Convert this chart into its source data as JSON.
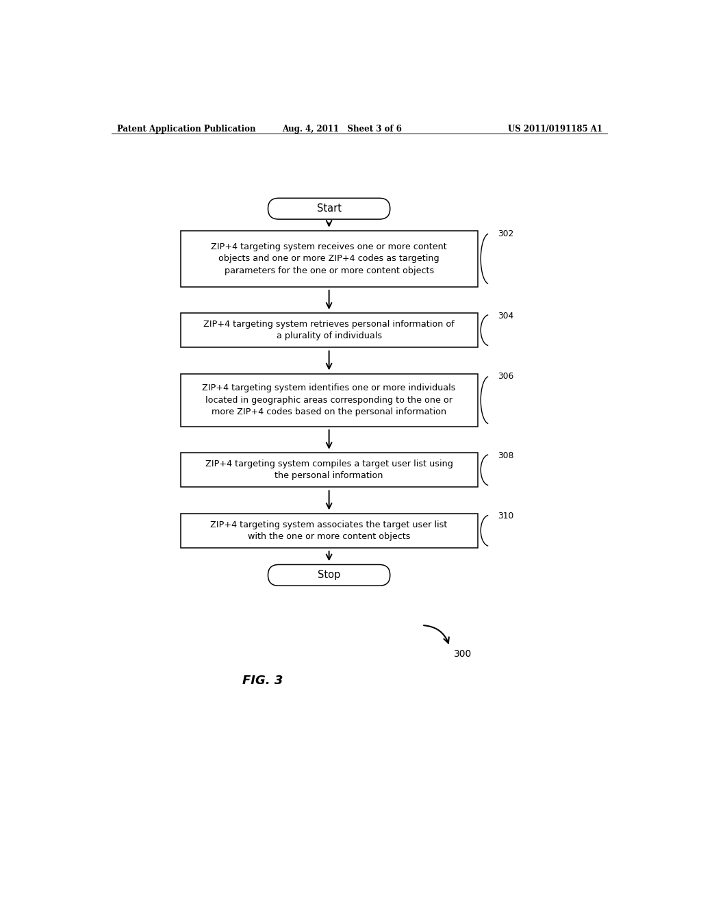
{
  "header_left": "Patent Application Publication",
  "header_center": "Aug. 4, 2011   Sheet 3 of 6",
  "header_right": "US 2011/0191185 A1",
  "figure_label": "FIG. 3",
  "diagram_label": "300",
  "start_label": "Start",
  "stop_label": "Stop",
  "boxes": [
    {
      "id": "302",
      "lines": [
        "ZIP+4 targeting system receives one or more content",
        "objects and one or more ZIP+4 codes as targeting",
        "parameters for the one or more content objects"
      ]
    },
    {
      "id": "304",
      "lines": [
        "ZIP+4 targeting system retrieves personal information of",
        "a plurality of individuals"
      ]
    },
    {
      "id": "306",
      "lines": [
        "ZIP+4 targeting system identifies one or more individuals",
        "located in geographic areas corresponding to the one or",
        "more ZIP+4 codes based on the personal information"
      ]
    },
    {
      "id": "308",
      "lines": [
        "ZIP+4 targeting system compiles a target user list using",
        "the personal information"
      ]
    },
    {
      "id": "310",
      "lines": [
        "ZIP+4 targeting system associates the target user list",
        "with the one or more content objects"
      ]
    }
  ],
  "bg_color": "#ffffff",
  "box_edge_color": "#000000",
  "text_color": "#000000",
  "arrow_color": "#000000"
}
